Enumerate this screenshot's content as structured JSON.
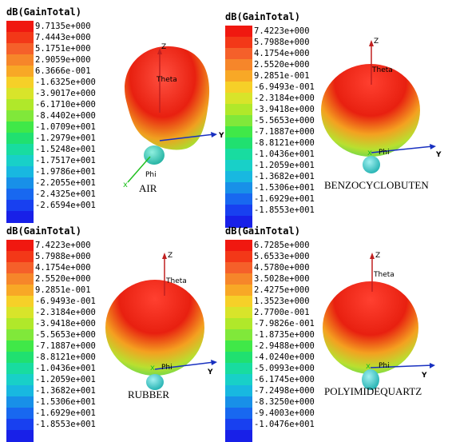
{
  "palette": [
    "#f01810",
    "#f33818",
    "#f5602a",
    "#f6862a",
    "#f8a826",
    "#f6d028",
    "#d8e42a",
    "#b0e82a",
    "#80e83a",
    "#40e848",
    "#20e070",
    "#18dca0",
    "#18d0c8",
    "#18b8e0",
    "#1890e8",
    "#1868f0",
    "#1840f0",
    "#1820e8"
  ],
  "panels": [
    {
      "title": "dB(GainTotal)",
      "material": "AIR",
      "values": [
        "9.7135e+000",
        "7.4443e+000",
        "5.1751e+000",
        "2.9059e+000",
        "6.3666e-001",
        "-1.6325e+000",
        "-3.9017e+000",
        "-6.1710e+000",
        "-8.4402e+000",
        "-1.0709e+001",
        "-1.2979e+001",
        "-1.5248e+001",
        "-1.7517e+001",
        "-1.9786e+001",
        "-2.2055e+001",
        "-2.4325e+001",
        "-2.6594e+001"
      ],
      "axes": {
        "z": "Z",
        "theta": "Theta",
        "y": "Y",
        "phi": "Phi"
      }
    },
    {
      "title": "dB(GainTotal)",
      "material": "BENZOCYCLOBUTEN",
      "values": [
        "7.4223e+000",
        "5.7988e+000",
        "4.1754e+000",
        "2.5520e+000",
        "9.2851e-001",
        "-6.9493e-001",
        "-2.3184e+000",
        "-3.9418e+000",
        "-5.5653e+000",
        "-7.1887e+000",
        "-8.8121e+000",
        "-1.0436e+001",
        "-1.2059e+001",
        "-1.3682e+001",
        "-1.5306e+001",
        "-1.6929e+001",
        "-1.8553e+001"
      ],
      "axes": {
        "z": "Z",
        "theta": "Theta",
        "y": "Y",
        "phi": "Phi"
      }
    },
    {
      "title": "dB(GainTotal)",
      "material": "RUBBER",
      "values": [
        "7.4223e+000",
        "5.7988e+000",
        "4.1754e+000",
        "2.5520e+000",
        "9.2851e-001",
        "-6.9493e-001",
        "-2.3184e+000",
        "-3.9418e+000",
        "-5.5653e+000",
        "-7.1887e+000",
        "-8.8121e+000",
        "-1.0436e+001",
        "-1.2059e+001",
        "-1.3682e+001",
        "-1.5306e+001",
        "-1.6929e+001",
        "-1.8553e+001"
      ],
      "axes": {
        "z": "Z",
        "theta": "Theta",
        "y": "Y",
        "phi": "Phi"
      }
    },
    {
      "title": "dB(GainTotal)",
      "material": "POLYIMIDEQUARTZ",
      "values": [
        "6.7285e+000",
        "5.6533e+000",
        "4.5780e+000",
        "3.5028e+000",
        "2.4275e+000",
        "1.3523e+000",
        "2.7700e-001",
        "-7.9826e-001",
        "-1.8735e+000",
        "-2.9488e+000",
        "-4.0240e+000",
        "-5.0993e+000",
        "-6.1745e+000",
        "-7.2498e+000",
        "-8.3250e+000",
        "-9.4003e+000",
        "-1.0476e+001"
      ],
      "axes": {
        "z": "Z",
        "theta": "Theta",
        "y": "Y",
        "phi": "Phi"
      }
    }
  ]
}
